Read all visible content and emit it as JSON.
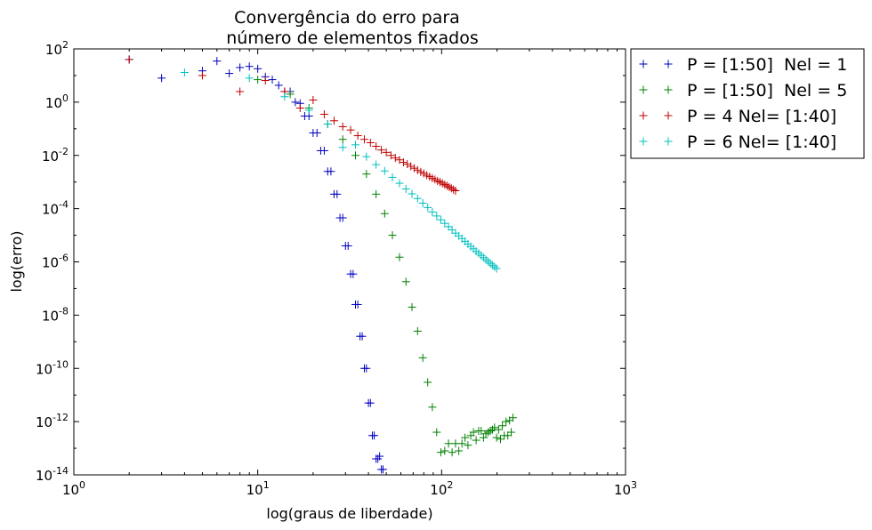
{
  "chart_data": {
    "type": "scatter",
    "title_line1": "Convergência do erro para",
    "title_line2": "número de elementos fixados",
    "xlabel": "log(graus de liberdade)",
    "ylabel": "log(erro)",
    "x_scale": "log",
    "y_scale": "log",
    "xlim": [
      1,
      1000
    ],
    "ylim": [
      1e-14,
      100
    ],
    "x_ticks": [
      {
        "base": "10",
        "exp": "0",
        "value": 1
      },
      {
        "base": "10",
        "exp": "1",
        "value": 10
      },
      {
        "base": "10",
        "exp": "2",
        "value": 100
      },
      {
        "base": "10",
        "exp": "3",
        "value": 1000
      }
    ],
    "y_ticks": [
      {
        "base": "10",
        "exp": "2",
        "value": 100.0
      },
      {
        "base": "10",
        "exp": "0",
        "value": 1.0
      },
      {
        "base": "10",
        "exp": "-2",
        "value": 0.01
      },
      {
        "base": "10",
        "exp": "-4",
        "value": 0.0001
      },
      {
        "base": "10",
        "exp": "-6",
        "value": 1e-06
      },
      {
        "base": "10",
        "exp": "-8",
        "value": 1e-08
      },
      {
        "base": "10",
        "exp": "-10",
        "value": 1e-10
      },
      {
        "base": "10",
        "exp": "-12",
        "value": 1e-12
      },
      {
        "base": "10",
        "exp": "-14",
        "value": 1e-14
      }
    ],
    "grid": false,
    "marker": "+",
    "legend_placement": "outside-top-right",
    "series": [
      {
        "name": "P = [1:50]  Nel = 1",
        "color": "#0000bf",
        "points": [
          [
            2,
            40
          ],
          [
            3,
            8
          ],
          [
            5,
            15
          ],
          [
            6,
            35
          ],
          [
            7,
            12
          ],
          [
            8,
            20
          ],
          [
            9,
            22
          ],
          [
            10,
            18
          ],
          [
            11,
            9
          ],
          [
            12,
            7
          ],
          [
            13,
            4.3
          ],
          [
            14,
            2.5
          ],
          [
            15,
            2.5
          ],
          [
            16,
            1
          ],
          [
            17,
            0.9
          ],
          [
            18,
            0.3
          ],
          [
            19,
            0.3
          ],
          [
            20,
            0.07
          ],
          [
            21,
            0.07
          ],
          [
            22,
            0.015
          ],
          [
            23,
            0.015
          ],
          [
            24,
            0.0025
          ],
          [
            25,
            0.0025
          ],
          [
            26,
            0.00035
          ],
          [
            27,
            0.00035
          ],
          [
            28,
            4.5e-05
          ],
          [
            29,
            4.5e-05
          ],
          [
            30,
            4e-06
          ],
          [
            31,
            4e-06
          ],
          [
            32,
            3.5e-07
          ],
          [
            33,
            3.5e-07
          ],
          [
            34,
            2.5e-08
          ],
          [
            35,
            2.5e-08
          ],
          [
            36,
            1.6e-09
          ],
          [
            37,
            1.6e-09
          ],
          [
            38,
            1e-10
          ],
          [
            39,
            1e-10
          ],
          [
            40,
            5e-12
          ],
          [
            41,
            5e-12
          ],
          [
            42,
            3e-13
          ],
          [
            43,
            3e-13
          ],
          [
            44,
            4e-14
          ],
          [
            45,
            4e-14
          ],
          [
            46,
            5e-14
          ],
          [
            47,
            1.6e-14
          ],
          [
            48,
            1.6e-14
          ]
        ]
      },
      {
        "name": "P = [1:50]  Nel = 5",
        "color": "#007f00",
        "points": [
          [
            10,
            7
          ],
          [
            15,
            2
          ],
          [
            19,
            0.6
          ],
          [
            24,
            0.15
          ],
          [
            29,
            0.04
          ],
          [
            34,
            0.01
          ],
          [
            39,
            0.002
          ],
          [
            44,
            0.00035
          ],
          [
            49,
            6.5e-05
          ],
          [
            54,
            1e-05
          ],
          [
            59,
            1.5e-06
          ],
          [
            64,
            1.8e-07
          ],
          [
            69,
            2e-08
          ],
          [
            74,
            2.5e-09
          ],
          [
            79,
            2.5e-10
          ],
          [
            84,
            3e-11
          ],
          [
            89,
            3.5e-12
          ],
          [
            94,
            4e-13
          ],
          [
            99,
            7e-14
          ],
          [
            104,
            8e-14
          ],
          [
            109,
            1.5e-13
          ],
          [
            114,
            7e-14
          ],
          [
            119,
            1.5e-13
          ],
          [
            124,
            8e-14
          ],
          [
            129,
            1.5e-13
          ],
          [
            134,
            2.5e-13
          ],
          [
            139,
            1.3e-13
          ],
          [
            144,
            3e-13
          ],
          [
            149,
            4e-13
          ],
          [
            154,
            2e-13
          ],
          [
            159,
            4.5e-13
          ],
          [
            164,
            4.5e-13
          ],
          [
            169,
            2.5e-13
          ],
          [
            174,
            3.5e-13
          ],
          [
            179,
            4e-13
          ],
          [
            184,
            4.5e-13
          ],
          [
            189,
            5e-13
          ],
          [
            194,
            6e-13
          ],
          [
            199,
            2.5e-13
          ],
          [
            204,
            5e-13
          ],
          [
            209,
            2.2e-13
          ],
          [
            214,
            7e-13
          ],
          [
            219,
            3e-13
          ],
          [
            224,
            1e-12
          ],
          [
            229,
            3e-13
          ],
          [
            234,
            1.1e-12
          ],
          [
            239,
            4e-13
          ],
          [
            244,
            1.4e-12
          ]
        ]
      },
      {
        "name": "P = 4 Nel= [1:40]",
        "color": "#bf0000",
        "points": [
          [
            2,
            40
          ],
          [
            5,
            10
          ],
          [
            8,
            2.5
          ],
          [
            11,
            6.5
          ],
          [
            14,
            2.5
          ],
          [
            17,
            0.6
          ],
          [
            20,
            1.2
          ],
          [
            23,
            0.35
          ],
          [
            26,
            0.2
          ],
          [
            29,
            0.12
          ],
          [
            32,
            0.09
          ],
          [
            35,
            0.055
          ],
          [
            38,
            0.04
          ],
          [
            41,
            0.03
          ],
          [
            44,
            0.022
          ],
          [
            47,
            0.016
          ],
          [
            50,
            0.013
          ],
          [
            53,
            0.01
          ],
          [
            56,
            0.008
          ],
          [
            59,
            0.0068
          ],
          [
            62,
            0.0055
          ],
          [
            65,
            0.0047
          ],
          [
            68,
            0.0039
          ],
          [
            71,
            0.0033
          ],
          [
            74,
            0.0028
          ],
          [
            77,
            0.0024
          ],
          [
            80,
            0.0021
          ],
          [
            83,
            0.0018
          ],
          [
            86,
            0.0016
          ],
          [
            89,
            0.0014
          ],
          [
            92,
            0.00125
          ],
          [
            95,
            0.0011
          ],
          [
            98,
            0.001
          ],
          [
            101,
            0.0009
          ],
          [
            104,
            0.0008
          ],
          [
            107,
            0.00072
          ],
          [
            110,
            0.00065
          ],
          [
            113,
            0.00058
          ],
          [
            116,
            0.00052
          ],
          [
            119,
            0.00047
          ]
        ]
      },
      {
        "name": "P = 6 Nel= [1:40]",
        "color": "#00bfbf",
        "points": [
          [
            4,
            13
          ],
          [
            9,
            8
          ],
          [
            14,
            1.6
          ],
          [
            19,
            0.5
          ],
          [
            24,
            0.15
          ],
          [
            29,
            0.02
          ],
          [
            34,
            0.025
          ],
          [
            39,
            0.009
          ],
          [
            44,
            0.0045
          ],
          [
            49,
            0.0026
          ],
          [
            54,
            0.0015
          ],
          [
            59,
            0.0009
          ],
          [
            64,
            0.00055
          ],
          [
            69,
            0.00036
          ],
          [
            74,
            0.00024
          ],
          [
            79,
            0.00016
          ],
          [
            84,
            0.00011
          ],
          [
            89,
            7.5e-05
          ],
          [
            94,
            5.3e-05
          ],
          [
            99,
            3.8e-05
          ],
          [
            104,
            2.8e-05
          ],
          [
            109,
            2.1e-05
          ],
          [
            114,
            1.6e-05
          ],
          [
            119,
            1.2e-05
          ],
          [
            124,
            9.5e-06
          ],
          [
            129,
            7.5e-06
          ],
          [
            134,
            5.9e-06
          ],
          [
            139,
            4.7e-06
          ],
          [
            144,
            3.8e-06
          ],
          [
            149,
            3.1e-06
          ],
          [
            154,
            2.5e-06
          ],
          [
            159,
            2.1e-06
          ],
          [
            164,
            1.75e-06
          ],
          [
            169,
            1.45e-06
          ],
          [
            174,
            1.22e-06
          ],
          [
            179,
            1.03e-06
          ],
          [
            184,
            8.8e-07
          ],
          [
            189,
            7.5e-07
          ],
          [
            194,
            6.5e-07
          ],
          [
            199,
            5.6e-07
          ]
        ]
      }
    ]
  }
}
